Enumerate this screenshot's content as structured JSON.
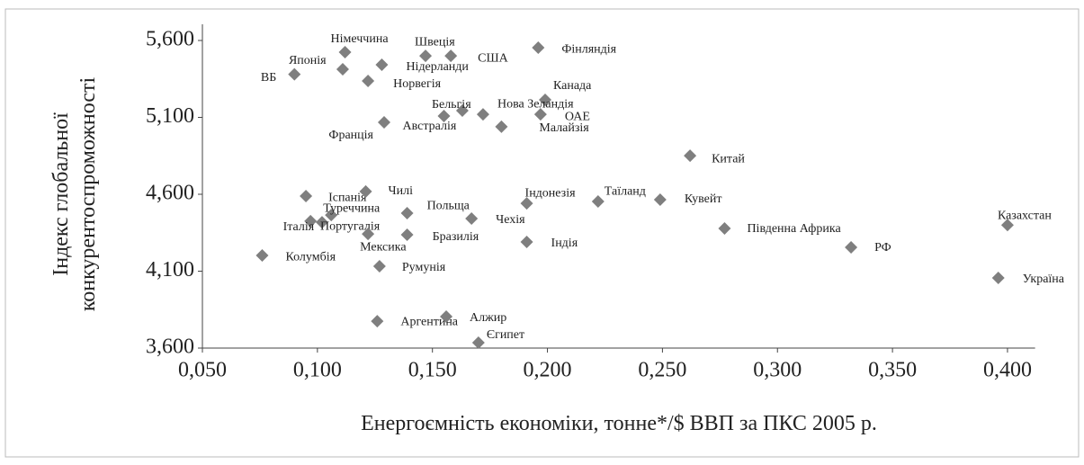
{
  "chart_data": {
    "type": "scatter",
    "xlabel": "Енергоємність економіки, тонне*/$ ВВП за ПКС 2005 р.",
    "ylabel": [
      "Індекс глобальної",
      "конкурентоспроможності"
    ],
    "color": "#7f7f7f",
    "labels": [
      "ВБ",
      "Японія",
      "Німеччина",
      "Норвегія",
      "Нідерланди",
      "Швеція",
      "США",
      "Фінляндія",
      "Канада",
      "Франція",
      "Австралія",
      "Бельгія",
      "Нова Зеландія",
      "Малайзія",
      "ОАЕ",
      "Китай",
      "Іспанія",
      "Чилі",
      "Туреччина",
      "Португалія",
      "Італія",
      "Мексика",
      "Бразилія",
      "Польща",
      "Чехія",
      "Індонезія",
      "Таїланд",
      "Кувейт",
      "Індія",
      "Південна Африка",
      "Казахстан",
      "РФ",
      "Україна",
      "Колумбія",
      "Румунія",
      "Аргентина",
      "Алжир",
      "Єгипет"
    ],
    "x": [
      0.09,
      0.111,
      0.112,
      0.122,
      0.128,
      0.147,
      0.158,
      0.196,
      0.199,
      0.129,
      0.155,
      0.163,
      0.172,
      0.18,
      0.197,
      0.262,
      0.095,
      0.121,
      0.106,
      0.102,
      0.097,
      0.122,
      0.139,
      0.139,
      0.167,
      0.191,
      0.222,
      0.249,
      0.191,
      0.277,
      0.4,
      0.332,
      0.396,
      0.076,
      0.127,
      0.126,
      0.156,
      0.17
    ],
    "values": [
      5380,
      5413,
      5524,
      5337,
      5442,
      5500,
      5500,
      5553,
      5214,
      5068,
      5109,
      5144,
      5120,
      5039,
      5120,
      4851,
      4588,
      4618,
      4465,
      4418,
      4425,
      4342,
      4337,
      4477,
      4442,
      4541,
      4553,
      4565,
      4290,
      4378,
      4400,
      4255,
      4056,
      4202,
      4132,
      3775,
      3805,
      3635
    ],
    "xlim": [
      0.05,
      0.412
    ],
    "xticks": [
      {
        "value": 0.05,
        "label": "0,050"
      },
      {
        "value": 0.1,
        "label": "0,100"
      },
      {
        "value": 0.15,
        "label": "0,150"
      },
      {
        "value": 0.2,
        "label": "0,200"
      },
      {
        "value": 0.25,
        "label": "0,250"
      },
      {
        "value": 0.3,
        "label": "0,300"
      },
      {
        "value": 0.35,
        "label": "0,350"
      },
      {
        "value": 0.4,
        "label": "0,400"
      }
    ],
    "ylim": [
      3600,
      5600
    ],
    "yticks": [
      {
        "value": 3600,
        "label": "3,600"
      },
      {
        "value": 4100,
        "label": "4,100"
      },
      {
        "value": 4600,
        "label": "4,600"
      },
      {
        "value": 5100,
        "label": "5,100"
      },
      {
        "value": 5600,
        "label": "5,600"
      }
    ],
    "grid": false
  }
}
